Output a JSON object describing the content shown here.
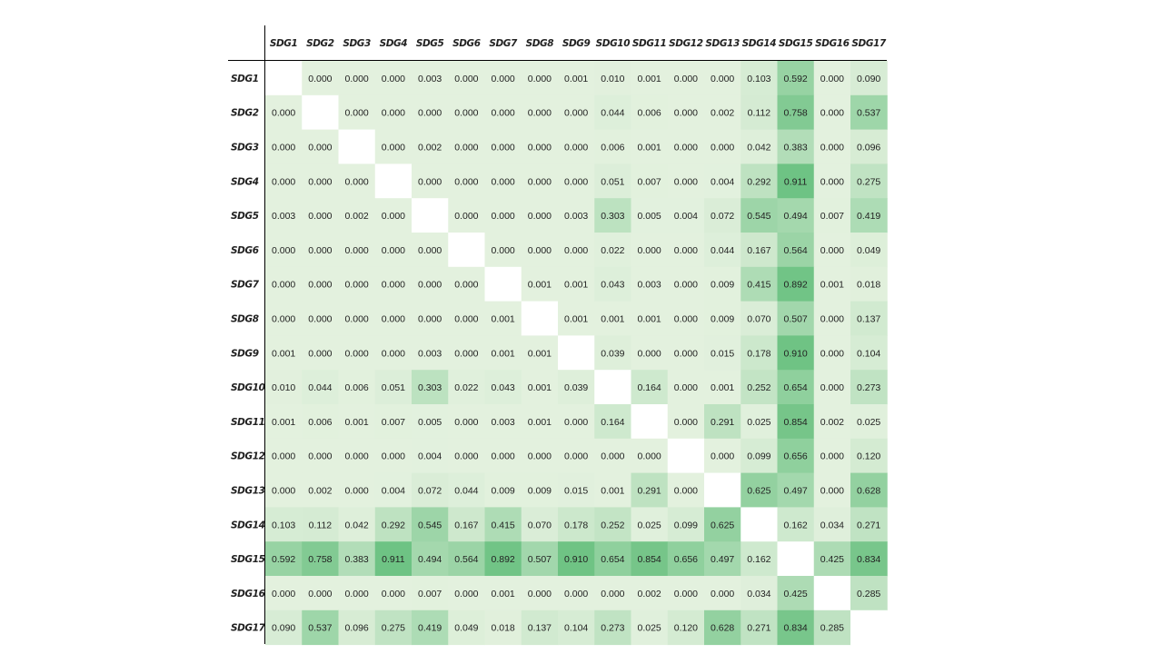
{
  "chart_data": {
    "type": "heatmap",
    "title": "",
    "xlabel": "",
    "ylabel": "",
    "labels": [
      "SDG1",
      "SDG2",
      "SDG3",
      "SDG4",
      "SDG5",
      "SDG6",
      "SDG7",
      "SDG8",
      "SDG9",
      "SDG10",
      "SDG11",
      "SDG12",
      "SDG13",
      "SDG14",
      "SDG15",
      "SDG16",
      "SDG17"
    ],
    "matrix": [
      [
        null,
        0.0,
        0.0,
        0.0,
        0.003,
        0.0,
        0.0,
        0.0,
        0.001,
        0.01,
        0.001,
        0.0,
        0.0,
        0.103,
        0.592,
        0.0,
        0.09
      ],
      [
        0.0,
        null,
        0.0,
        0.0,
        0.0,
        0.0,
        0.0,
        0.0,
        0.0,
        0.044,
        0.006,
        0.0,
        0.002,
        0.112,
        0.758,
        0.0,
        0.537
      ],
      [
        0.0,
        0.0,
        null,
        0.0,
        0.002,
        0.0,
        0.0,
        0.0,
        0.0,
        0.006,
        0.001,
        0.0,
        0.0,
        0.042,
        0.383,
        0.0,
        0.096
      ],
      [
        0.0,
        0.0,
        0.0,
        null,
        0.0,
        0.0,
        0.0,
        0.0,
        0.0,
        0.051,
        0.007,
        0.0,
        0.004,
        0.292,
        0.911,
        0.0,
        0.275
      ],
      [
        0.003,
        0.0,
        0.002,
        0.0,
        null,
        0.0,
        0.0,
        0.0,
        0.003,
        0.303,
        0.005,
        0.004,
        0.072,
        0.545,
        0.494,
        0.007,
        0.419
      ],
      [
        0.0,
        0.0,
        0.0,
        0.0,
        0.0,
        null,
        0.0,
        0.0,
        0.0,
        0.022,
        0.0,
        0.0,
        0.044,
        0.167,
        0.564,
        0.0,
        0.049
      ],
      [
        0.0,
        0.0,
        0.0,
        0.0,
        0.0,
        0.0,
        null,
        0.001,
        0.001,
        0.043,
        0.003,
        0.0,
        0.009,
        0.415,
        0.892,
        0.001,
        0.018
      ],
      [
        0.0,
        0.0,
        0.0,
        0.0,
        0.0,
        0.0,
        0.001,
        null,
        0.001,
        0.001,
        0.001,
        0.0,
        0.009,
        0.07,
        0.507,
        0.0,
        0.137
      ],
      [
        0.001,
        0.0,
        0.0,
        0.0,
        0.003,
        0.0,
        0.001,
        0.001,
        null,
        0.039,
        0.0,
        0.0,
        0.015,
        0.178,
        0.91,
        0.0,
        0.104
      ],
      [
        0.01,
        0.044,
        0.006,
        0.051,
        0.303,
        0.022,
        0.043,
        0.001,
        0.039,
        null,
        0.164,
        0.0,
        0.001,
        0.252,
        0.654,
        0.0,
        0.273
      ],
      [
        0.001,
        0.006,
        0.001,
        0.007,
        0.005,
        0.0,
        0.003,
        0.001,
        0.0,
        0.164,
        null,
        0.0,
        0.291,
        0.025,
        0.854,
        0.002,
        0.025
      ],
      [
        0.0,
        0.0,
        0.0,
        0.0,
        0.004,
        0.0,
        0.0,
        0.0,
        0.0,
        0.0,
        0.0,
        null,
        0.0,
        0.099,
        0.656,
        0.0,
        0.12
      ],
      [
        0.0,
        0.002,
        0.0,
        0.004,
        0.072,
        0.044,
        0.009,
        0.009,
        0.015,
        0.001,
        0.291,
        0.0,
        null,
        0.625,
        0.497,
        0.0,
        0.628
      ],
      [
        0.103,
        0.112,
        0.042,
        0.292,
        0.545,
        0.167,
        0.415,
        0.07,
        0.178,
        0.252,
        0.025,
        0.099,
        0.625,
        null,
        0.162,
        0.034,
        0.271
      ],
      [
        0.592,
        0.758,
        0.383,
        0.911,
        0.494,
        0.564,
        0.892,
        0.507,
        0.91,
        0.654,
        0.854,
        0.656,
        0.497,
        0.162,
        null,
        0.425,
        0.834
      ],
      [
        0.0,
        0.0,
        0.0,
        0.0,
        0.007,
        0.0,
        0.001,
        0.0,
        0.0,
        0.0,
        0.002,
        0.0,
        0.0,
        0.034,
        0.425,
        null,
        0.285
      ],
      [
        0.09,
        0.537,
        0.096,
        0.275,
        0.419,
        0.049,
        0.018,
        0.137,
        0.104,
        0.273,
        0.025,
        0.12,
        0.628,
        0.271,
        0.834,
        0.285,
        null
      ]
    ],
    "value_range": [
      0,
      1
    ],
    "color_low": "#e3f1de",
    "color_high": "#63be7b",
    "diagonal_color": "#ffffff",
    "grid": false,
    "legend": "none"
  }
}
